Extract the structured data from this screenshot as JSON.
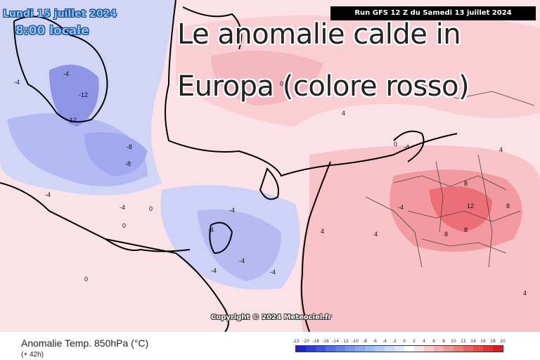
{
  "header": {
    "date_line": "Lundi 15 juillet 2024",
    "time_line": "8:00 locale",
    "run_info": "Run GFS 12 Z du Samedi 13 juillet 2024"
  },
  "overlay": {
    "line1": "Le anomalie calde in",
    "line2": "Europa (colore rosso)"
  },
  "map": {
    "copyright": "Copyright © 2024 Meteociel.fr",
    "isoline_labels": [
      {
        "id": "l1",
        "text": "-12"
      },
      {
        "id": "l2",
        "text": "-12"
      },
      {
        "id": "l3",
        "text": "-8"
      },
      {
        "id": "l4",
        "text": "-8"
      },
      {
        "id": "l5",
        "text": "-4"
      },
      {
        "id": "l6",
        "text": "-4"
      },
      {
        "id": "l7",
        "text": "-4"
      },
      {
        "id": "l8",
        "text": "-4"
      },
      {
        "id": "l9",
        "text": "-4"
      },
      {
        "id": "l10",
        "text": "-4"
      },
      {
        "id": "l11",
        "text": "-4"
      },
      {
        "id": "l12",
        "text": "-4"
      },
      {
        "id": "l13",
        "text": "-4"
      },
      {
        "id": "l14",
        "text": "0"
      },
      {
        "id": "l15",
        "text": "0"
      },
      {
        "id": "l16",
        "text": "0"
      },
      {
        "id": "l17",
        "text": "0"
      },
      {
        "id": "l18",
        "text": "0"
      },
      {
        "id": "l19",
        "text": "4"
      },
      {
        "id": "l20",
        "text": "4"
      },
      {
        "id": "l21",
        "text": "4"
      },
      {
        "id": "l22",
        "text": "4"
      },
      {
        "id": "l23",
        "text": "8"
      },
      {
        "id": "l24",
        "text": "8"
      },
      {
        "id": "l25",
        "text": "8"
      },
      {
        "id": "l26",
        "text": "12"
      },
      {
        "id": "l27",
        "text": "8"
      },
      {
        "id": "l28",
        "text": "4"
      },
      {
        "id": "l29",
        "text": "-4"
      },
      {
        "id": "l30",
        "text": "-4"
      }
    ]
  },
  "legend": {
    "parameter": "Anomalie Temp. 850hPa (°C)",
    "lead_time": "(+ 42h)",
    "scale_values": [
      "-22",
      "-20",
      "-18",
      "-16",
      "-14",
      "-12",
      "-10",
      "-8",
      "-6",
      "-4",
      "-2",
      "0",
      "2",
      "4",
      "6",
      "8",
      "10",
      "12",
      "14",
      "16",
      "18",
      "20"
    ],
    "scale_colors": [
      "#1f1fd8",
      "#2a3ae0",
      "#3a54e6",
      "#4c6ded",
      "#5f84f0",
      "#7398f2",
      "#86aaf4",
      "#9bbcf6",
      "#b0ccf8",
      "#c6dcfa",
      "#dde9fc",
      "#ffffff",
      "#fde3e3",
      "#fbcaca",
      "#f8b0b0",
      "#f59696",
      "#f27c7c",
      "#ef6262",
      "#ec4848",
      "#e82f2f",
      "#e21818"
    ]
  },
  "colors": {
    "cold_strong": "#8a8fe8",
    "cold_light": "#c9d0f7",
    "warm_light": "#fbd6d6",
    "warm_strong": "#f06a6a"
  }
}
